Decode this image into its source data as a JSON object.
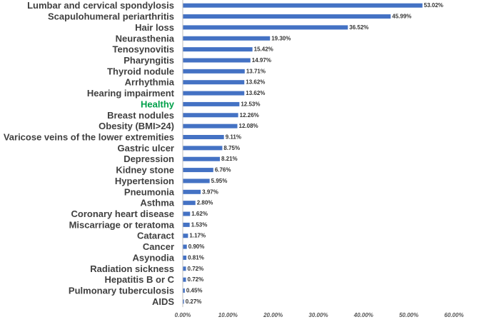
{
  "chart_data": {
    "type": "bar",
    "orientation": "horizontal",
    "categories": [
      "Lumbar and cervical spondylosis",
      "Scapulohumeral periarthritis",
      "Hair loss",
      "Neurasthenia",
      "Tenosynovitis",
      "Pharyngitis",
      "Thyroid nodule",
      "Arrhythmia",
      "Hearing impairment",
      "Healthy",
      "Breast nodules",
      "Obesity (BMI>24)",
      "Varicose veins of the lower extremities",
      "Gastric ulcer",
      "Depression",
      "Kidney stone",
      "Hypertension",
      "Pneumonia",
      "Asthma",
      "Coronary heart disease",
      "Miscarriage or teratoma",
      "Cataract",
      "Cancer",
      "Asynodia",
      "Radiation sickness",
      "Hepatitis B or C",
      "Pulmonary tuberculosis",
      "AIDS"
    ],
    "values": [
      53.02,
      45.99,
      36.52,
      19.3,
      15.42,
      14.97,
      13.71,
      13.62,
      13.62,
      12.53,
      12.26,
      12.08,
      9.11,
      8.75,
      8.21,
      6.76,
      5.95,
      3.97,
      2.8,
      1.62,
      1.53,
      1.17,
      0.9,
      0.81,
      0.72,
      0.72,
      0.45,
      0.27
    ],
    "value_labels": [
      "53.02%",
      "45.99%",
      "36.52%",
      "19.30%",
      "15.42%",
      "14.97%",
      "13.71%",
      "13.62%",
      "13.62%",
      "12.53%",
      "12.26%",
      "12.08%",
      "9.11%",
      "8.75%",
      "8.21%",
      "6.76%",
      "5.95%",
      "3.97%",
      "2.80%",
      "1.62%",
      "1.53%",
      "1.17%",
      "0.90%",
      "0.81%",
      "0.72%",
      "0.72%",
      "0.45%",
      "0.27%"
    ],
    "xlim": [
      0,
      60
    ],
    "xticks": [
      0,
      10,
      20,
      30,
      40,
      50,
      60
    ],
    "xtick_labels": [
      "0.00%",
      "10.00%",
      "20.00%",
      "30.00%",
      "40.00%",
      "50.00%",
      "60.00%"
    ],
    "highlight_category": "Healthy",
    "bar_color": "#4472c4",
    "highlight_label_color": "#00a04a",
    "title": "",
    "xlabel": "",
    "ylabel": "",
    "grid": false,
    "legend": "none"
  }
}
